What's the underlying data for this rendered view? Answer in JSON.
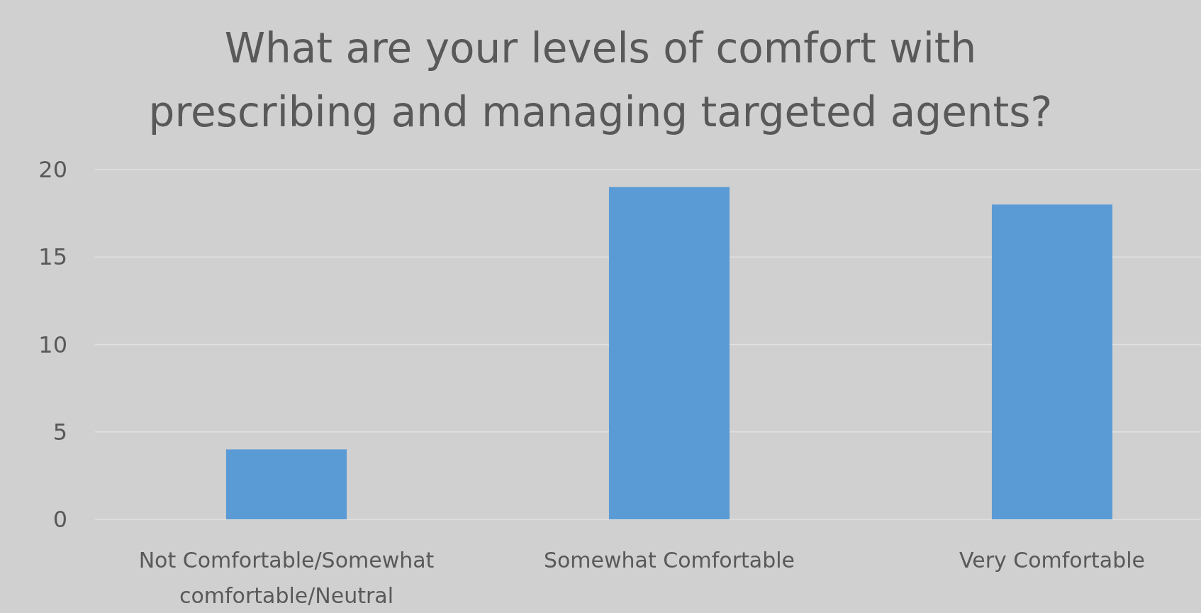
{
  "chart_data": {
    "type": "bar",
    "title": "What are your levels of comfort with prescribing and managing targeted agents?",
    "categories": [
      "Not Comfortable/Somewhat comfortable/Neutral",
      "Somewhat Comfortable",
      "Very Comfortable"
    ],
    "values": [
      4,
      19,
      18
    ],
    "color": "#5b9bd5",
    "ylim": [
      0,
      20
    ],
    "yticks": [
      0,
      5,
      10,
      15,
      20
    ],
    "grid": "y"
  }
}
